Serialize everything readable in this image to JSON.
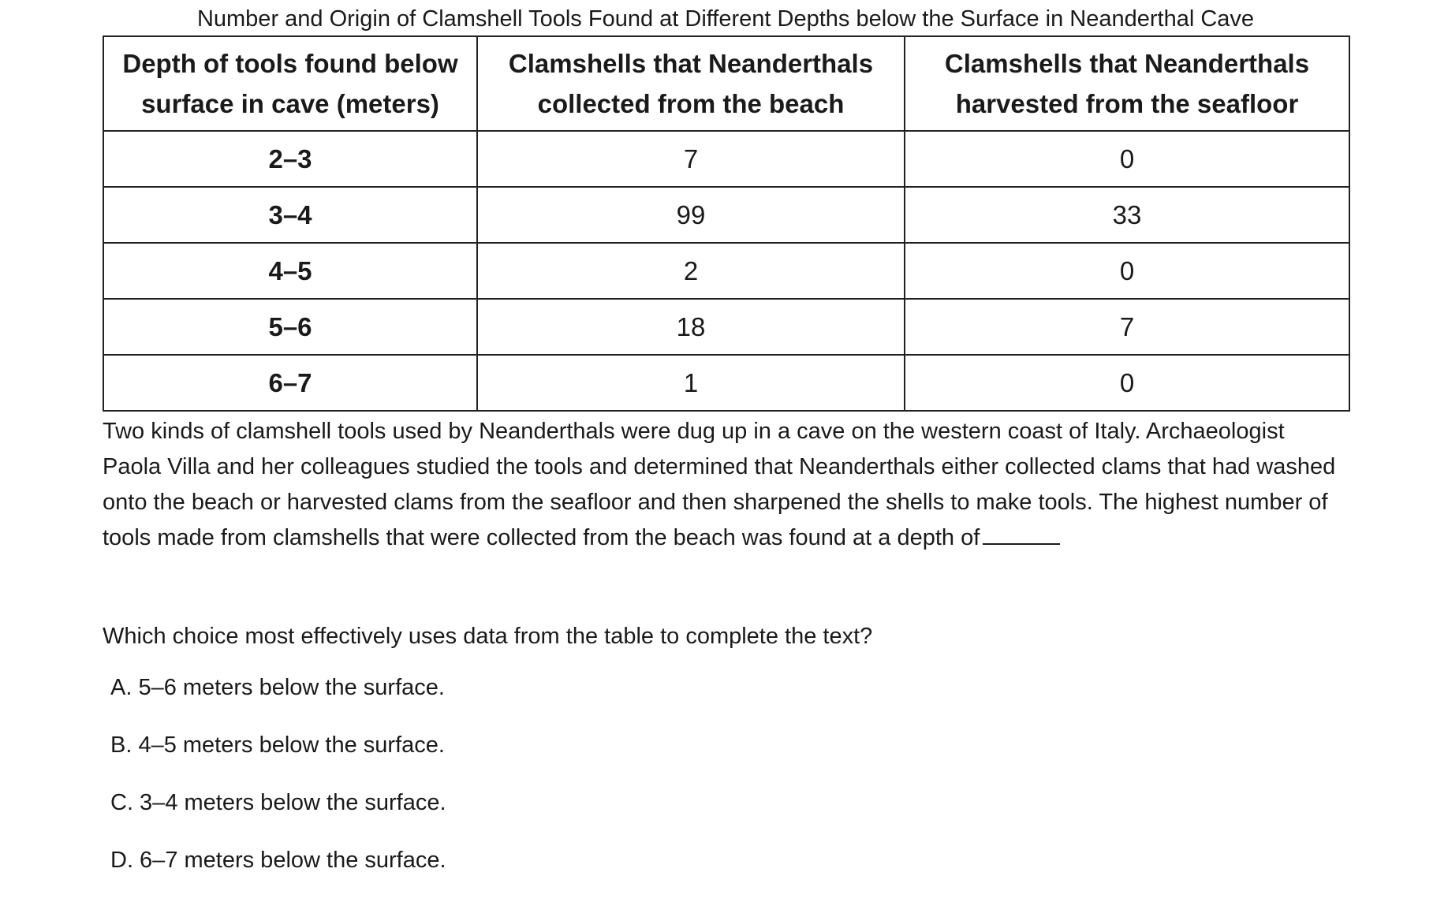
{
  "table": {
    "title": "Number and Origin of Clamshell Tools Found at Different Depths below the Surface in Neanderthal Cave",
    "headers": [
      [
        "Depth of tools found below",
        "surface in cave (meters)"
      ],
      [
        "Clamshells that Neanderthals",
        "collected from the beach"
      ],
      [
        "Clamshells that Neanderthals",
        "harvested from the seafloor"
      ]
    ],
    "rows": [
      [
        "2–3",
        "7",
        "0"
      ],
      [
        "3–4",
        "99",
        "33"
      ],
      [
        "4–5",
        "2",
        "0"
      ],
      [
        "5–6",
        "18",
        "7"
      ],
      [
        "6–7",
        "1",
        "0"
      ]
    ]
  },
  "passage": {
    "text": "Two kinds of clamshell tools used by Neanderthals were dug up in a cave on the western coast of Italy. Archaeologist Paola Villa and her colleagues studied the tools and determined that Neanderthals either collected clams that had washed onto the beach or harvested clams from the seafloor and then sharpened the shells to make tools. The highest number of tools made from clamshells that were collected from the beach was found at a depth of"
  },
  "question": {
    "text": "Which choice most effectively uses data from the table to complete the text?",
    "choices": [
      "A. 5–6 meters below the surface.",
      "B. 4–5 meters below the surface.",
      "C. 3–4 meters below the surface.",
      "D. 6–7 meters below the surface."
    ]
  }
}
